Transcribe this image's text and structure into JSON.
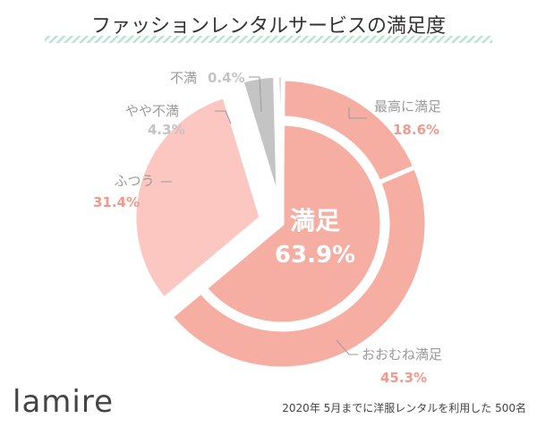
{
  "chart_data": {
    "type": "pie",
    "title": "ファッションレンタルサービスの満足度",
    "categories": [
      "最高に満足",
      "おおむね満足",
      "ふつう",
      "やや不満",
      "不満"
    ],
    "values": [
      18.6,
      45.3,
      31.4,
      4.3,
      0.4
    ],
    "value_labels": [
      "18.6%",
      "45.3%",
      "31.4%",
      "4.3%",
      "0.4%"
    ],
    "group": {
      "label": "満足",
      "value": 63.9,
      "value_label": "63.9%",
      "members": [
        "最高に満足",
        "おおむね満足"
      ]
    }
  },
  "colors": {
    "accent_stripe": "#b9e4d2",
    "very_satisfied": "#f6aea3",
    "mostly_satisfied": "#f6aea3",
    "satisfied_inner": "#f6aea3",
    "neutral": "#fcc6c1",
    "slightly_dissatisfied": "#c4c4c4",
    "dissatisfied": "#c4c4c4",
    "label_gray": "#9a9a9a",
    "label_pink": "#ef9a8e",
    "title_text": "#333333"
  },
  "brand": "lamire",
  "footnote": "2020年 5月までに洋服レンタルを利用した 500名"
}
